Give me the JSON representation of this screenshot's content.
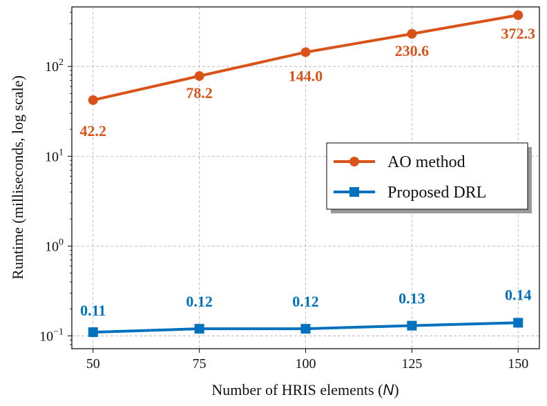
{
  "chart_data": {
    "type": "line",
    "x": [
      50,
      75,
      100,
      125,
      150
    ],
    "xlabel": "Number of HRIS elements (",
    "xlabel_var": "N",
    "xlabel_close": ")",
    "ylabel": "Runtime (milliseconds, log scale)",
    "yscale": "log",
    "ylim": [
      0.072,
      460
    ],
    "xlim": [
      45,
      155
    ],
    "xticks": [
      "50",
      "75",
      "100",
      "125",
      "150"
    ],
    "yticks": [
      {
        "value": 0.1,
        "base": "10",
        "exp": "−1"
      },
      {
        "value": 1,
        "base": "10",
        "exp": "0"
      },
      {
        "value": 10,
        "base": "10",
        "exp": "1"
      },
      {
        "value": 100,
        "base": "10",
        "exp": "2"
      }
    ],
    "grid": true,
    "legend_position": "center-right",
    "series": [
      {
        "name": "AO method",
        "marker": "circle",
        "color": "#d95319",
        "values": [
          42.2,
          78.2,
          144.0,
          230.6,
          372.3
        ],
        "labels": [
          "42.2",
          "78.2",
          "144.0",
          "230.6",
          "372.3"
        ]
      },
      {
        "name": "Proposed DRL",
        "marker": "square",
        "color": "#0072bd",
        "values": [
          0.11,
          0.12,
          0.12,
          0.13,
          0.14
        ],
        "labels": [
          "0.11",
          "0.12",
          "0.12",
          "0.13",
          "0.14"
        ]
      }
    ]
  }
}
